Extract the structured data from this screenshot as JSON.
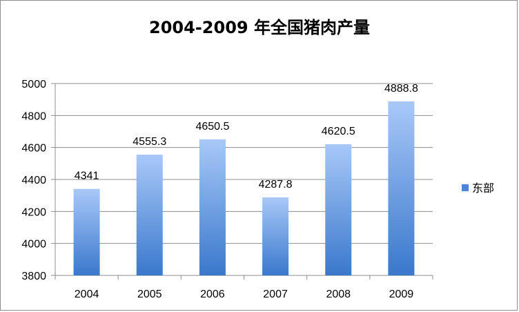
{
  "chart_data": {
    "type": "bar",
    "title": "2004-2009 年全国猪肉产量",
    "categories": [
      "2004",
      "2005",
      "2006",
      "2007",
      "2008",
      "2009"
    ],
    "series": [
      {
        "name": "东部",
        "values": [
          4341,
          4555.3,
          4650.5,
          4287.8,
          4620.5,
          4888.8
        ],
        "data_labels": [
          "4341",
          "4555.3",
          "4650.5",
          "4287.8",
          "4620.5",
          "4888.8"
        ]
      }
    ],
    "ylim": [
      3800,
      5000
    ],
    "yticks": [
      "3800",
      "4000",
      "4200",
      "4400",
      "4600",
      "4800",
      "5000"
    ],
    "grid": true,
    "legend_position": "right",
    "colors": {
      "bar_top": "#a8c8f8",
      "bar_bottom": "#3a78cc",
      "grid": "#8c8c8c",
      "legend_swatch": "#4a86d8"
    }
  }
}
